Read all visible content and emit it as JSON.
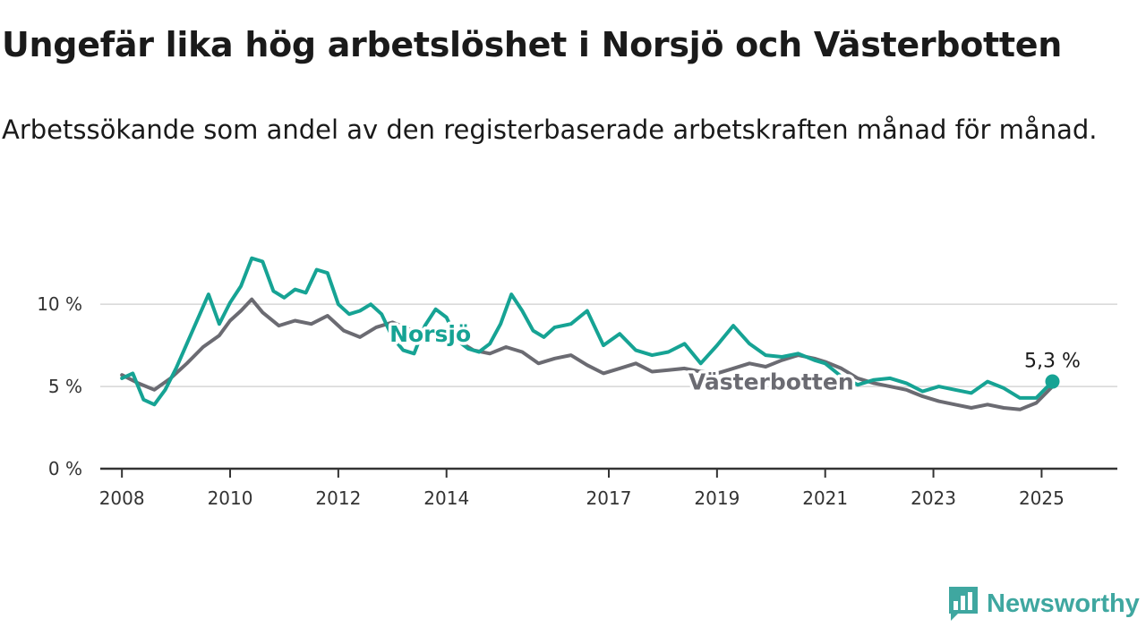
{
  "title": "Ungefär lika hög arbetslöshet i Norsjö och Västerbotten",
  "subtitle": "Arbetssökande som andel av den registerbaserade arbetskraften månad för månad.",
  "brand": {
    "name": "Newsworthy",
    "icon": "newsworthy-logo-icon",
    "color": "#3fa7a0"
  },
  "chart_data": {
    "type": "line",
    "x_unit": "year",
    "xlim": [
      2007.6,
      2026.4
    ],
    "ylim": [
      0,
      13
    ],
    "y_ticks": [
      {
        "value": 0,
        "label": "0 %"
      },
      {
        "value": 5,
        "label": "5 %"
      },
      {
        "value": 10,
        "label": "10 %"
      }
    ],
    "x_ticks": [
      {
        "value": 2008,
        "label": "2008"
      },
      {
        "value": 2010,
        "label": "2010"
      },
      {
        "value": 2012,
        "label": "2012"
      },
      {
        "value": 2014,
        "label": "2014"
      },
      {
        "value": 2017,
        "label": "2017"
      },
      {
        "value": 2019,
        "label": "2019"
      },
      {
        "value": 2021,
        "label": "2021"
      },
      {
        "value": 2023,
        "label": "2023"
      },
      {
        "value": 2025,
        "label": "2025"
      }
    ],
    "grid": true,
    "series": [
      {
        "name": "Västerbotten",
        "color": "#6b6b72",
        "label_pos": {
          "x": 2020.0,
          "y": 5.3
        },
        "points": [
          [
            2008.0,
            5.7
          ],
          [
            2008.3,
            5.2
          ],
          [
            2008.6,
            4.8
          ],
          [
            2008.9,
            5.5
          ],
          [
            2009.2,
            6.4
          ],
          [
            2009.5,
            7.4
          ],
          [
            2009.8,
            8.1
          ],
          [
            2010.0,
            9.0
          ],
          [
            2010.2,
            9.6
          ],
          [
            2010.4,
            10.3
          ],
          [
            2010.6,
            9.5
          ],
          [
            2010.9,
            8.7
          ],
          [
            2011.2,
            9.0
          ],
          [
            2011.5,
            8.8
          ],
          [
            2011.8,
            9.3
          ],
          [
            2012.1,
            8.4
          ],
          [
            2012.4,
            8.0
          ],
          [
            2012.7,
            8.6
          ],
          [
            2013.0,
            8.9
          ],
          [
            2013.3,
            8.5
          ],
          [
            2013.6,
            8.1
          ],
          [
            2013.9,
            8.4
          ],
          [
            2014.2,
            7.8
          ],
          [
            2014.5,
            7.2
          ],
          [
            2014.8,
            7.0
          ],
          [
            2015.1,
            7.4
          ],
          [
            2015.4,
            7.1
          ],
          [
            2015.7,
            6.4
          ],
          [
            2016.0,
            6.7
          ],
          [
            2016.3,
            6.9
          ],
          [
            2016.6,
            6.3
          ],
          [
            2016.9,
            5.8
          ],
          [
            2017.2,
            6.1
          ],
          [
            2017.5,
            6.4
          ],
          [
            2017.8,
            5.9
          ],
          [
            2018.1,
            6.0
          ],
          [
            2018.4,
            6.1
          ],
          [
            2018.7,
            5.9
          ],
          [
            2019.0,
            5.8
          ],
          [
            2019.3,
            6.1
          ],
          [
            2019.6,
            6.4
          ],
          [
            2019.9,
            6.2
          ],
          [
            2020.2,
            6.6
          ],
          [
            2020.5,
            6.9
          ],
          [
            2020.8,
            6.7
          ],
          [
            2021.0,
            6.5
          ],
          [
            2021.3,
            6.1
          ],
          [
            2021.6,
            5.5
          ],
          [
            2021.9,
            5.2
          ],
          [
            2022.2,
            5.0
          ],
          [
            2022.5,
            4.8
          ],
          [
            2022.8,
            4.4
          ],
          [
            2023.1,
            4.1
          ],
          [
            2023.4,
            3.9
          ],
          [
            2023.7,
            3.7
          ],
          [
            2024.0,
            3.9
          ],
          [
            2024.3,
            3.7
          ],
          [
            2024.6,
            3.6
          ],
          [
            2024.9,
            4.0
          ],
          [
            2025.2,
            5.0
          ]
        ]
      },
      {
        "name": "Norsjö",
        "color": "#16a394",
        "label_pos": {
          "x": 2013.7,
          "y": 8.2
        },
        "end_label": "5,3 %",
        "points": [
          [
            2008.0,
            5.5
          ],
          [
            2008.2,
            5.8
          ],
          [
            2008.4,
            4.2
          ],
          [
            2008.6,
            3.9
          ],
          [
            2008.8,
            4.8
          ],
          [
            2009.0,
            6.1
          ],
          [
            2009.2,
            7.6
          ],
          [
            2009.4,
            9.1
          ],
          [
            2009.6,
            10.6
          ],
          [
            2009.8,
            8.8
          ],
          [
            2010.0,
            10.1
          ],
          [
            2010.2,
            11.1
          ],
          [
            2010.4,
            12.8
          ],
          [
            2010.6,
            12.6
          ],
          [
            2010.8,
            10.8
          ],
          [
            2011.0,
            10.4
          ],
          [
            2011.2,
            10.9
          ],
          [
            2011.4,
            10.7
          ],
          [
            2011.6,
            12.1
          ],
          [
            2011.8,
            11.9
          ],
          [
            2012.0,
            10.0
          ],
          [
            2012.2,
            9.4
          ],
          [
            2012.4,
            9.6
          ],
          [
            2012.6,
            10.0
          ],
          [
            2012.8,
            9.4
          ],
          [
            2013.0,
            8.0
          ],
          [
            2013.2,
            7.2
          ],
          [
            2013.4,
            7.0
          ],
          [
            2013.6,
            8.7
          ],
          [
            2013.8,
            9.7
          ],
          [
            2014.0,
            9.2
          ],
          [
            2014.2,
            7.8
          ],
          [
            2014.4,
            7.3
          ],
          [
            2014.6,
            7.1
          ],
          [
            2014.8,
            7.6
          ],
          [
            2015.0,
            8.8
          ],
          [
            2015.2,
            10.6
          ],
          [
            2015.4,
            9.6
          ],
          [
            2015.6,
            8.4
          ],
          [
            2015.8,
            8.0
          ],
          [
            2016.0,
            8.6
          ],
          [
            2016.3,
            8.8
          ],
          [
            2016.6,
            9.6
          ],
          [
            2016.9,
            7.5
          ],
          [
            2017.2,
            8.2
          ],
          [
            2017.5,
            7.2
          ],
          [
            2017.8,
            6.9
          ],
          [
            2018.1,
            7.1
          ],
          [
            2018.4,
            7.6
          ],
          [
            2018.7,
            6.4
          ],
          [
            2019.0,
            7.5
          ],
          [
            2019.3,
            8.7
          ],
          [
            2019.6,
            7.6
          ],
          [
            2019.9,
            6.9
          ],
          [
            2020.2,
            6.8
          ],
          [
            2020.5,
            7.0
          ],
          [
            2020.8,
            6.6
          ],
          [
            2021.0,
            6.4
          ],
          [
            2021.3,
            5.6
          ],
          [
            2021.6,
            5.1
          ],
          [
            2021.9,
            5.4
          ],
          [
            2022.2,
            5.5
          ],
          [
            2022.5,
            5.2
          ],
          [
            2022.8,
            4.7
          ],
          [
            2023.1,
            5.0
          ],
          [
            2023.4,
            4.8
          ],
          [
            2023.7,
            4.6
          ],
          [
            2024.0,
            5.3
          ],
          [
            2024.3,
            4.9
          ],
          [
            2024.6,
            4.3
          ],
          [
            2024.9,
            4.3
          ],
          [
            2025.2,
            5.3
          ]
        ]
      }
    ]
  }
}
